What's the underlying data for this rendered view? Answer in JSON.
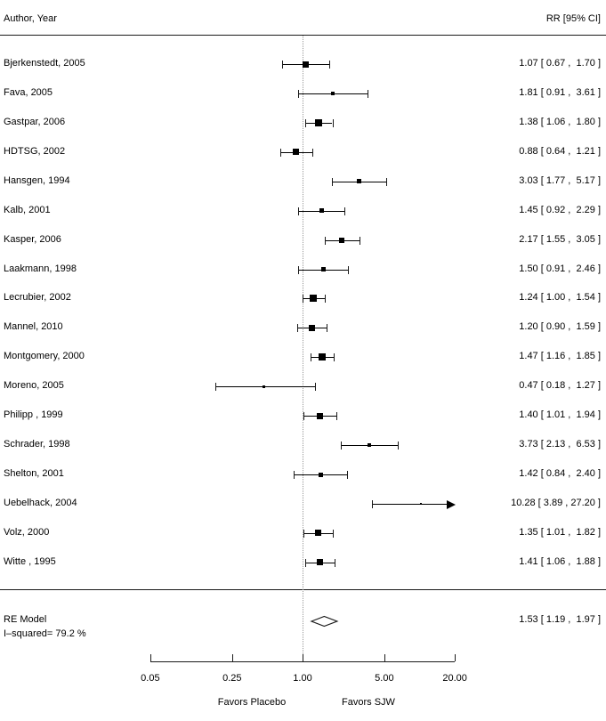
{
  "chart_data": {
    "type": "forest",
    "columns": {
      "left": "Author, Year",
      "right": "RR [95% CI]"
    },
    "x_axis": {
      "scale": "log",
      "tick_values": [
        0.05,
        0.25,
        1.0,
        5.0,
        20.0
      ],
      "tick_labels": [
        "0.05",
        "0.25",
        "1.00",
        "5.00",
        "20.00"
      ],
      "range": [
        0.05,
        20.0
      ],
      "ref_value": 1.0,
      "left_label": "Favors Placebo",
      "right_label": "Favors SJW"
    },
    "studies": [
      {
        "author": "Bjerkenstedt, 2005",
        "rr": 1.07,
        "ci_low": 0.67,
        "ci_high": 1.7,
        "display": "1.07 [ 0.67 ,  1.70 ]",
        "marker_size": 7
      },
      {
        "author": "Fava, 2005",
        "rr": 1.81,
        "ci_low": 0.91,
        "ci_high": 3.61,
        "display": "1.81 [ 0.91 ,  3.61 ]",
        "marker_size": 4
      },
      {
        "author": "Gastpar, 2006",
        "rr": 1.38,
        "ci_low": 1.06,
        "ci_high": 1.8,
        "display": "1.38 [ 1.06 ,  1.80 ]",
        "marker_size": 8
      },
      {
        "author": "HDTSG, 2002",
        "rr": 0.88,
        "ci_low": 0.64,
        "ci_high": 1.21,
        "display": "0.88 [ 0.64 ,  1.21 ]",
        "marker_size": 7
      },
      {
        "author": "Hansgen, 1994",
        "rr": 3.03,
        "ci_low": 1.77,
        "ci_high": 5.17,
        "display": "3.03 [ 1.77 ,  5.17 ]",
        "marker_size": 5
      },
      {
        "author": "Kalb, 2001",
        "rr": 1.45,
        "ci_low": 0.92,
        "ci_high": 2.29,
        "display": "1.45 [ 0.92 ,  2.29 ]",
        "marker_size": 5
      },
      {
        "author": "Kasper, 2006",
        "rr": 2.17,
        "ci_low": 1.55,
        "ci_high": 3.05,
        "display": "2.17 [ 1.55 ,  3.05 ]",
        "marker_size": 6
      },
      {
        "author": "Laakmann, 1998",
        "rr": 1.5,
        "ci_low": 0.91,
        "ci_high": 2.46,
        "display": "1.50 [ 0.91 ,  2.46 ]",
        "marker_size": 5
      },
      {
        "author": "Lecrubier, 2002",
        "rr": 1.24,
        "ci_low": 1.0,
        "ci_high": 1.54,
        "display": "1.24 [ 1.00 ,  1.54 ]",
        "marker_size": 8
      },
      {
        "author": "Mannel, 2010",
        "rr": 1.2,
        "ci_low": 0.9,
        "ci_high": 1.59,
        "display": "1.20 [ 0.90 ,  1.59 ]",
        "marker_size": 7
      },
      {
        "author": "Montgomery, 2000",
        "rr": 1.47,
        "ci_low": 1.16,
        "ci_high": 1.85,
        "display": "1.47 [ 1.16 ,  1.85 ]",
        "marker_size": 8
      },
      {
        "author": "Moreno, 2005",
        "rr": 0.47,
        "ci_low": 0.18,
        "ci_high": 1.27,
        "display": "0.47 [ 0.18 ,  1.27 ]",
        "marker_size": 3
      },
      {
        "author": "Philipp , 1999",
        "rr": 1.4,
        "ci_low": 1.01,
        "ci_high": 1.94,
        "display": "1.40 [ 1.01 ,  1.94 ]",
        "marker_size": 7
      },
      {
        "author": "Schrader, 1998",
        "rr": 3.73,
        "ci_low": 2.13,
        "ci_high": 6.53,
        "display": "3.73 [ 2.13 ,  6.53 ]",
        "marker_size": 4
      },
      {
        "author": "Shelton, 2001",
        "rr": 1.42,
        "ci_low": 0.84,
        "ci_high": 2.4,
        "display": "1.42 [ 0.84 ,  2.40 ]",
        "marker_size": 5
      },
      {
        "author": "Uebelhack, 2004",
        "rr": 10.28,
        "ci_low": 3.89,
        "ci_high": 27.2,
        "display": "10.28 [ 3.89 , 27.20 ]",
        "marker_size": 2,
        "clip_high": true
      },
      {
        "author": "Volz, 2000",
        "rr": 1.35,
        "ci_low": 1.01,
        "ci_high": 1.82,
        "display": "1.35 [ 1.01 ,  1.82 ]",
        "marker_size": 7
      },
      {
        "author": "Witte , 1995",
        "rr": 1.41,
        "ci_low": 1.06,
        "ci_high": 1.88,
        "display": "1.41 [ 1.06 ,  1.88 ]",
        "marker_size": 7
      }
    ],
    "summary": {
      "label": "RE Model",
      "heterogeneity": "I–squared= 79.2 %",
      "rr": 1.53,
      "ci_low": 1.19,
      "ci_high": 1.97,
      "display": "1.53 [ 1.19 ,  1.97 ]"
    }
  },
  "colors": {
    "text": "#000000",
    "line": "#1a1a1a",
    "marker": "#000000",
    "ref_line": "#999999",
    "background": "#ffffff"
  }
}
